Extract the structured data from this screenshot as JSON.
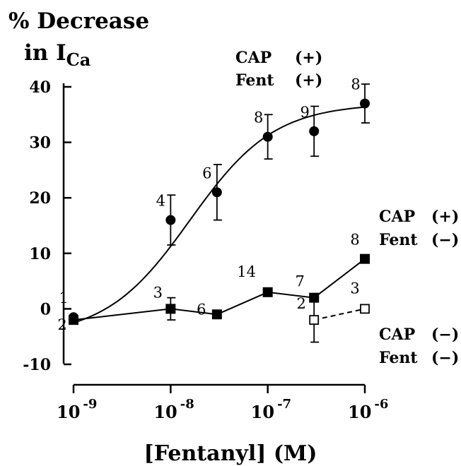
{
  "chart_data": {
    "type": "scatter",
    "title": "",
    "ylabel_line1": "% Decrease",
    "ylabel_line2_prefix": "in I",
    "ylabel_line2_sub": "Ca",
    "xlabel": "[Fentanyl] (M)",
    "x_scale": "log",
    "xlim": [
      1e-09,
      1e-06
    ],
    "ylim": [
      -10,
      40
    ],
    "yticks": [
      -10,
      0,
      10,
      20,
      30,
      40
    ],
    "xticks": [
      {
        "x": 1e-09,
        "base": "10",
        "exp": "-9"
      },
      {
        "x": 1e-08,
        "base": "10",
        "exp": "-8"
      },
      {
        "x": 1e-07,
        "base": "10",
        "exp": "-7"
      },
      {
        "x": 1e-06,
        "base": "10",
        "exp": "-6"
      }
    ],
    "series": [
      {
        "cap": "CAP",
        "cap_sign": "(+)",
        "fent": "Fent",
        "fent_sign": "(+)",
        "marker": "circle-filled",
        "x": [
          1e-09,
          1e-08,
          3e-08,
          1e-07,
          3e-07,
          1e-06
        ],
        "y": [
          -1.5,
          16,
          21,
          31,
          32,
          37
        ],
        "err": [
          null,
          4.5,
          5,
          4,
          4.5,
          3.5
        ],
        "n": [
          "1",
          "4",
          "6",
          "8",
          "9",
          "8"
        ],
        "fit_curve": true
      },
      {
        "cap": "CAP",
        "cap_sign": "(+)",
        "fent": "Fent",
        "fent_sign": "(−)",
        "marker": "square-filled",
        "x": [
          1e-09,
          1e-08,
          3e-08,
          1e-07,
          3e-07,
          1e-06
        ],
        "y": [
          -2,
          0,
          -1,
          3,
          2,
          9
        ],
        "err": [
          null,
          2,
          null,
          null,
          null,
          null
        ],
        "n": [
          "2",
          "3",
          "6",
          "14",
          "7",
          "8"
        ]
      },
      {
        "cap": "CAP",
        "cap_sign": "(−)",
        "fent": "Fent",
        "fent_sign": "(−)",
        "marker": "square-open",
        "x": [
          3e-07,
          1e-06
        ],
        "y": [
          -2,
          0
        ],
        "err": [
          4,
          null
        ],
        "n": [
          "2",
          "3"
        ],
        "dashed": true
      }
    ]
  }
}
